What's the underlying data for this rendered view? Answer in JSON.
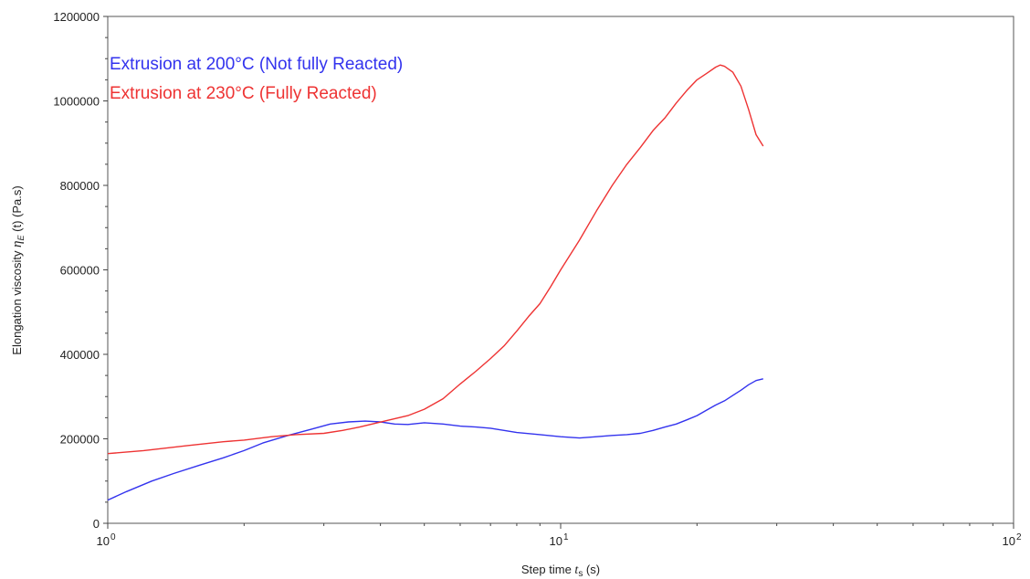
{
  "chart_data": {
    "type": "line",
    "xlabel": "Step time t s (s)",
    "xlabel_parts": {
      "pre": "Step time ",
      "symbol": "t",
      "sub": "s",
      "post": " (s)"
    },
    "ylabel": "Elongation viscosity η E (t) (Pa.s)",
    "ylabel_parts": {
      "pre": "Elongation viscosity ",
      "symbol": "η",
      "sub": "E",
      "post": " (t)  (Pa.s)"
    },
    "x_scale": "log",
    "xlim": [
      1,
      100
    ],
    "ylim": [
      0,
      1200000
    ],
    "x_ticks": [
      {
        "value": 1,
        "base": "10",
        "exp": "0"
      },
      {
        "value": 10,
        "base": "10",
        "exp": "1"
      },
      {
        "value": 100,
        "base": "10",
        "exp": "2"
      }
    ],
    "y_ticks": [
      {
        "value": 0,
        "label": "0"
      },
      {
        "value": 200000,
        "label": "200000"
      },
      {
        "value": 400000,
        "label": "400000"
      },
      {
        "value": 600000,
        "label": "600000"
      },
      {
        "value": 800000,
        "label": "800000"
      },
      {
        "value": 1000000,
        "label": "1000000"
      },
      {
        "value": 1200000,
        "label": "1200000"
      }
    ],
    "grid": false,
    "legend_position": "top-left",
    "series": [
      {
        "name": "Extrusion at 200°C (Not fully Reacted)",
        "color": "#3333ee",
        "x": [
          1.0,
          1.1,
          1.25,
          1.4,
          1.6,
          1.8,
          2.0,
          2.2,
          2.5,
          2.8,
          3.1,
          3.4,
          3.7,
          4.0,
          4.3,
          4.6,
          5.0,
          5.5,
          6.0,
          6.5,
          7.0,
          7.5,
          8.0,
          9.0,
          10.0,
          11.0,
          12.0,
          13.0,
          14.0,
          15.0,
          16.0,
          17.0,
          18.0,
          19.0,
          20.0,
          21.0,
          22.0,
          23.0,
          24.0,
          25.0,
          26.0,
          27.0,
          28.0
        ],
        "y": [
          55000,
          75000,
          100000,
          118000,
          138000,
          155000,
          172000,
          190000,
          208000,
          222000,
          235000,
          240000,
          242000,
          240000,
          235000,
          234000,
          238000,
          235000,
          230000,
          228000,
          225000,
          220000,
          215000,
          210000,
          205000,
          202000,
          205000,
          208000,
          210000,
          213000,
          220000,
          228000,
          235000,
          245000,
          255000,
          268000,
          280000,
          290000,
          303000,
          315000,
          328000,
          338000,
          342000
        ]
      },
      {
        "name": "Extrusion at 230°C (Fully Reacted)",
        "color": "#ee3333",
        "x": [
          1.0,
          1.2,
          1.5,
          1.8,
          2.0,
          2.3,
          2.6,
          3.0,
          3.3,
          3.6,
          3.9,
          4.2,
          4.6,
          5.0,
          5.5,
          6.0,
          6.5,
          7.0,
          7.5,
          8.0,
          8.5,
          9.0,
          9.5,
          10.0,
          11.0,
          12.0,
          13.0,
          14.0,
          15.0,
          16.0,
          17.0,
          18.0,
          19.0,
          20.0,
          21.0,
          22.0,
          22.5,
          23.0,
          24.0,
          25.0,
          26.0,
          27.0,
          28.0
        ],
        "y": [
          165000,
          172000,
          184000,
          193000,
          197000,
          205000,
          210000,
          213000,
          220000,
          228000,
          237000,
          245000,
          255000,
          270000,
          295000,
          330000,
          360000,
          390000,
          420000,
          455000,
          490000,
          520000,
          560000,
          600000,
          670000,
          740000,
          800000,
          850000,
          890000,
          930000,
          960000,
          995000,
          1025000,
          1050000,
          1065000,
          1080000,
          1085000,
          1082000,
          1068000,
          1035000,
          980000,
          920000,
          893000
        ]
      }
    ]
  }
}
